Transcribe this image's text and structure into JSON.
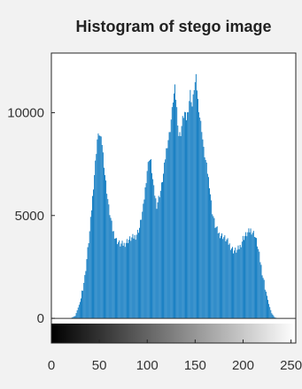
{
  "chart_data": {
    "type": "bar",
    "title": "Histogram of stego image",
    "xlabel": "",
    "ylabel": "",
    "xlim": [
      0,
      255
    ],
    "ylim": [
      -1200,
      12900
    ],
    "x_ticks": [
      0,
      50,
      100,
      150,
      200,
      250
    ],
    "x_tick_labels": [
      "0",
      "50",
      "100",
      "150",
      "200",
      "250"
    ],
    "y_ticks": [
      0,
      5000,
      10000
    ],
    "y_tick_labels": [
      "0",
      "5000",
      "10000"
    ],
    "bar_color": "#0072bd",
    "colorbar": {
      "type": "grayscale",
      "range": [
        0,
        255
      ]
    },
    "grid": false,
    "series": [
      {
        "name": "",
        "bins": [
          0,
          255
        ],
        "envelope": [
          [
            0,
            0
          ],
          [
            20,
            0
          ],
          [
            25,
            120
          ],
          [
            30,
            800
          ],
          [
            35,
            2000
          ],
          [
            40,
            4200
          ],
          [
            45,
            7000
          ],
          [
            48,
            8700
          ],
          [
            50,
            9000
          ],
          [
            53,
            8500
          ],
          [
            56,
            7000
          ],
          [
            60,
            5400
          ],
          [
            64,
            4300
          ],
          [
            68,
            3800
          ],
          [
            72,
            3600
          ],
          [
            76,
            3600
          ],
          [
            80,
            3800
          ],
          [
            84,
            3900
          ],
          [
            88,
            4000
          ],
          [
            92,
            4400
          ],
          [
            96,
            5400
          ],
          [
            100,
            7200
          ],
          [
            102,
            7800
          ],
          [
            104,
            7600
          ],
          [
            107,
            6300
          ],
          [
            110,
            5500
          ],
          [
            114,
            6200
          ],
          [
            117,
            7000
          ],
          [
            120,
            8200
          ],
          [
            124,
            9200
          ],
          [
            127,
            10600
          ],
          [
            129,
            11200
          ],
          [
            131,
            10200
          ],
          [
            133,
            8900
          ],
          [
            135,
            9000
          ],
          [
            137,
            9700
          ],
          [
            139,
            10000
          ],
          [
            141,
            9700
          ],
          [
            143,
            10200
          ],
          [
            145,
            11000
          ],
          [
            147,
            10300
          ],
          [
            149,
            11200
          ],
          [
            151,
            11700
          ],
          [
            153,
            10600
          ],
          [
            155,
            9800
          ],
          [
            157,
            9200
          ],
          [
            159,
            8200
          ],
          [
            162,
            7400
          ],
          [
            165,
            6500
          ],
          [
            168,
            5200
          ],
          [
            171,
            4500
          ],
          [
            175,
            4100
          ],
          [
            179,
            4000
          ],
          [
            183,
            3800
          ],
          [
            187,
            3500
          ],
          [
            190,
            3300
          ],
          [
            194,
            3300
          ],
          [
            197,
            3500
          ],
          [
            200,
            3900
          ],
          [
            204,
            4100
          ],
          [
            208,
            4300
          ],
          [
            212,
            4100
          ],
          [
            215,
            3600
          ],
          [
            218,
            2800
          ],
          [
            221,
            2000
          ],
          [
            224,
            1300
          ],
          [
            227,
            700
          ],
          [
            230,
            250
          ],
          [
            233,
            50
          ],
          [
            236,
            0
          ],
          [
            255,
            0
          ]
        ]
      }
    ]
  }
}
